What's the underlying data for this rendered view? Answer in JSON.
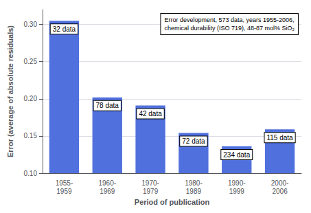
{
  "chart_data": {
    "type": "bar",
    "categories": [
      "1955-\n1959",
      "1960-\n1969",
      "1970-\n1979",
      "1980-\n1989",
      "1990-\n1999",
      "2000-\n2006"
    ],
    "values": [
      0.305,
      0.202,
      0.191,
      0.154,
      0.136,
      0.159
    ],
    "bar_labels": [
      "32 data",
      "78 data",
      "42 data",
      "72 data",
      "234 data",
      "115 data"
    ],
    "xlabel": "Period of publication",
    "ylabel": "Error (average of absolute residuals)",
    "annotation": "Error development, 573 data, years 1955-2006,\nchemical durability (ISO 719), 48-87 mol% SiO₂",
    "ylim": [
      0.1,
      0.32
    ],
    "yticks": [
      {
        "value": 0.1,
        "label": "0.10"
      },
      0.15,
      {
        "value": 0.2,
        "label": "0.20"
      },
      0.25,
      {
        "value": 0.3,
        "label": "0.30"
      }
    ],
    "grid": true
  }
}
